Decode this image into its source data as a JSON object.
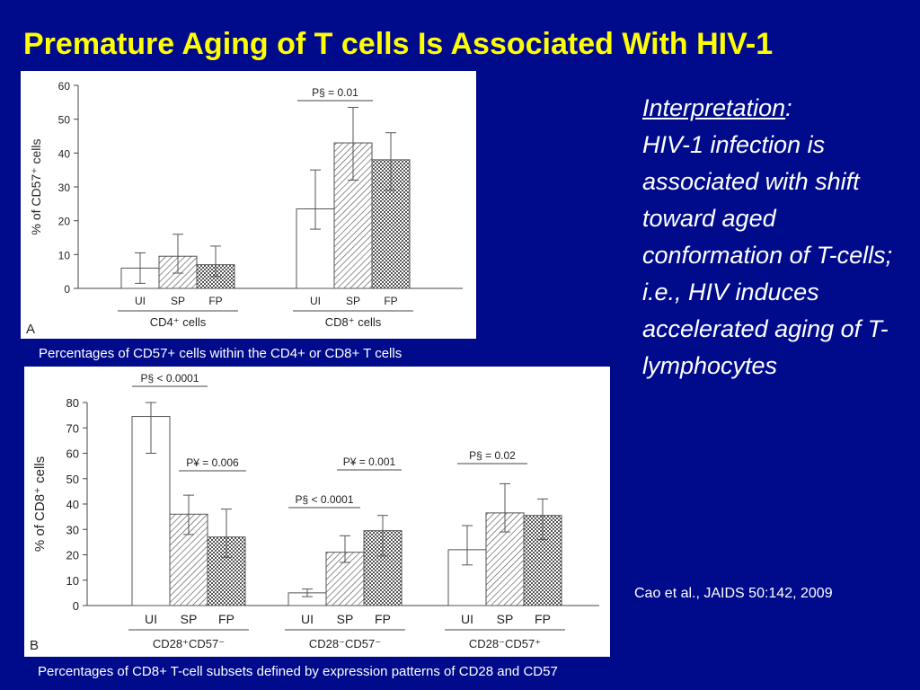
{
  "title": "Premature Aging of T cells Is Associated With HIV-1",
  "interpretation": {
    "heading": "Interpretation",
    "colon": ":",
    "body": "HIV-1 infection is associated with shift toward aged conformation of T-cells; i.e., HIV induces accelerated aging of T-lymphocytes"
  },
  "citation": "Cao et al., JAIDS 50:142, 2009",
  "captions": {
    "a": "Percentages of CD57+ cells within the CD4+ or CD8+ T cells",
    "b": "Percentages of CD8+ T-cell subsets defined by expression patterns of CD28 and CD57"
  },
  "colors": {
    "background": "#000b8c",
    "title": "#ffff00",
    "text": "#ffffff"
  },
  "chart_data": [
    {
      "type": "bar",
      "panel_label": "A",
      "ylabel": "% of CD57⁺ cells",
      "ylim": [
        0,
        60
      ],
      "yticks": [
        0,
        10,
        20,
        30,
        40,
        50,
        60
      ],
      "series_labels": [
        "UI",
        "SP",
        "FP"
      ],
      "series_fill": [
        "white",
        "hatch",
        "crosshatch"
      ],
      "groups": [
        {
          "name": "CD4⁺ cells",
          "values": [
            6,
            9.5,
            7
          ],
          "err_low": [
            1.5,
            4.5,
            3.5
          ],
          "err_high": [
            10.5,
            16,
            12.5
          ]
        },
        {
          "name": "CD8⁺ cells",
          "values": [
            23.5,
            43,
            38
          ],
          "err_low": [
            17.5,
            32,
            29
          ],
          "err_high": [
            35,
            53.5,
            46
          ],
          "pvalue": "P§ = 0.01"
        }
      ],
      "grid": false
    },
    {
      "type": "bar",
      "panel_label": "B",
      "ylabel": "% of CD8⁺ cells",
      "ylim": [
        0,
        80
      ],
      "yticks": [
        0,
        10,
        20,
        30,
        40,
        50,
        60,
        70,
        80
      ],
      "series_labels": [
        "UI",
        "SP",
        "FP"
      ],
      "series_fill": [
        "white",
        "hatch",
        "crosshatch"
      ],
      "groups": [
        {
          "name": "CD28⁺CD57⁻",
          "values": [
            74.5,
            36,
            27
          ],
          "err_low": [
            60,
            28,
            19
          ],
          "err_high": [
            80,
            43.5,
            38
          ],
          "pvalues": [
            "P§ < 0.0001",
            "P¥ = 0.006"
          ]
        },
        {
          "name": "CD28⁻CD57⁻",
          "values": [
            5,
            21,
            29.5
          ],
          "err_low": [
            3.5,
            17,
            19.5
          ],
          "err_high": [
            6.5,
            27.5,
            35.5
          ],
          "pvalues": [
            "P§ < 0.0001",
            "P¥ = 0.001"
          ]
        },
        {
          "name": "CD28⁻CD57⁺",
          "values": [
            22,
            36.5,
            35.5
          ],
          "err_low": [
            16,
            29,
            26
          ],
          "err_high": [
            31.5,
            48,
            42
          ],
          "pvalues": [
            "P§ = 0.02"
          ]
        }
      ],
      "grid": false
    }
  ]
}
